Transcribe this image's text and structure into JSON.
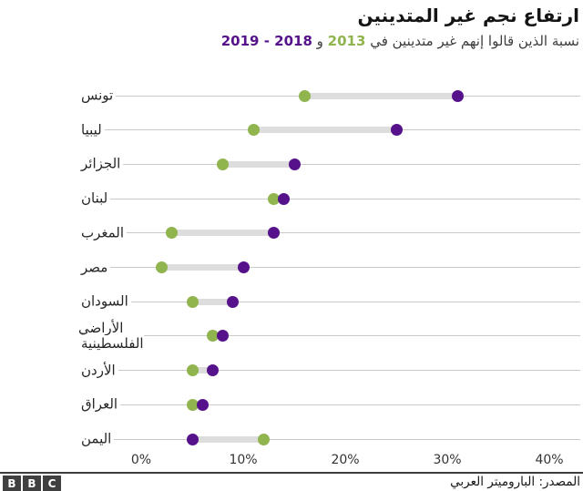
{
  "header": {
    "title": "ارتفاع نجم غير المتدينين",
    "subtitle_prefix": "نسبة الذين قالوا إنهم غير متدينين في ",
    "subtitle_year1": "2013",
    "subtitle_conj": " و ",
    "subtitle_year2": "2018 - 2019"
  },
  "colors": {
    "green_2013": "#90b44e",
    "purple_2018": "#55128b",
    "connector": "#dddddd",
    "gridline": "#c9c9c9"
  },
  "chart_data": {
    "type": "dumbbell",
    "title": "ارتفاع نجم غير المتدينين",
    "subtitle": "نسبة الذين قالوا إنهم غير متدينين في 2013 و 2018 - 2019",
    "unit": "%",
    "xlim": [
      0,
      40
    ],
    "x_ticks": [
      "0%",
      "10%",
      "20%",
      "30%",
      "40%"
    ],
    "grid": "horizontal-row-lines",
    "legend_position": "in-subtitle",
    "categories": [
      "تونس",
      "ليبيا",
      "الجزائر",
      "لبنان",
      "المغرب",
      "مصر",
      "السودان",
      "الأراضي الفلسطينية",
      "الأردن",
      "العراق",
      "اليمن"
    ],
    "series": [
      {
        "name": "2013",
        "color": "#90b44e",
        "values": [
          16,
          11,
          8,
          13,
          3,
          2,
          5,
          7,
          5,
          5,
          12
        ]
      },
      {
        "name": "2018 - 2019",
        "color": "#55128b",
        "values": [
          31,
          25,
          15,
          14,
          13,
          10,
          9,
          8,
          7,
          6,
          5
        ]
      }
    ]
  },
  "footer": {
    "logo_letters": [
      "B",
      "B",
      "C"
    ],
    "source": "المصدر: الباروميتر العربي"
  }
}
